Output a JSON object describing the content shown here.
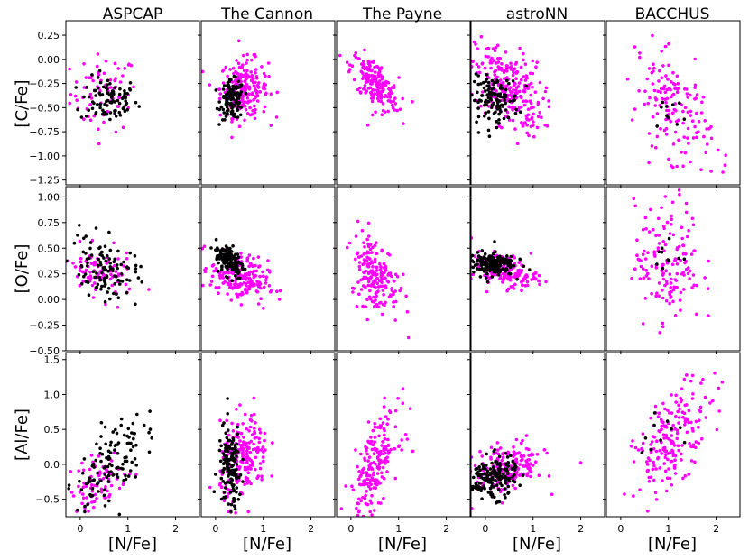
{
  "figure": {
    "columns": [
      "ASPCAP",
      "The Cannon",
      "The Payne",
      "astroNN",
      "BACCHUS"
    ],
    "xlabel": "[N/Fe]",
    "rows": [
      "[C/Fe]",
      "[O/Fe]",
      "[Al/Fe]"
    ]
  },
  "colors": {
    "magenta_series": "#ff00ff",
    "black_series": "#000000"
  },
  "chart_data": {
    "type": "scatter",
    "grid": false,
    "xlim": [
      -0.3,
      2.5
    ],
    "xticks": [
      0,
      1,
      2
    ],
    "xtick_labels": [
      "0",
      "1",
      "2"
    ],
    "rows": [
      {
        "ylabel": "[C/Fe]",
        "ylim": [
          -1.3,
          0.4
        ],
        "yticks": [
          -1.25,
          -1.0,
          -0.75,
          -0.5,
          -0.25,
          0.0,
          0.25
        ],
        "ytick_labels": [
          "−1.25",
          "−1.00",
          "−0.75",
          "−0.50",
          "−0.25",
          "0.00",
          "0.25"
        ]
      },
      {
        "ylabel": "[O/Fe]",
        "ylim": [
          -0.5,
          1.1
        ],
        "yticks": [
          -0.5,
          -0.25,
          0.0,
          0.25,
          0.5,
          0.75,
          1.0
        ],
        "ytick_labels": [
          "−0.50",
          "−0.25",
          "0.00",
          "0.25",
          "0.50",
          "0.75",
          "1.00"
        ]
      },
      {
        "ylabel": "[Al/Fe]",
        "ylim": [
          -0.75,
          1.6
        ],
        "yticks": [
          -0.5,
          0.0,
          0.5,
          1.0,
          1.5
        ],
        "ytick_labels": [
          "−0.5",
          "0.0",
          "0.5",
          "1.0",
          "1.5"
        ]
      }
    ],
    "panels": [
      {
        "row": 0,
        "col": 0,
        "magenta": {
          "n": 70,
          "x": [
            0.5,
            0.35
          ],
          "y": [
            -0.35,
            0.2
          ],
          "corr": 0
        },
        "black": {
          "n": 90,
          "x": [
            0.6,
            0.3
          ],
          "y": [
            -0.42,
            0.12
          ],
          "corr": 0
        }
      },
      {
        "row": 0,
        "col": 1,
        "magenta": {
          "n": 220,
          "x": [
            0.6,
            0.25
          ],
          "y": [
            -0.3,
            0.15
          ],
          "corr": 0
        },
        "black": {
          "n": 130,
          "x": [
            0.35,
            0.12
          ],
          "y": [
            -0.42,
            0.1
          ],
          "corr": 0
        }
      },
      {
        "row": 0,
        "col": 2,
        "magenta": {
          "n": 190,
          "x": [
            0.5,
            0.25
          ],
          "y": [
            -0.25,
            0.15
          ],
          "corr": -0.6
        },
        "black": {
          "n": 0,
          "x": [
            0,
            0
          ],
          "y": [
            0,
            0
          ],
          "corr": 0
        }
      },
      {
        "row": 0,
        "col": 3,
        "magenta": {
          "n": 250,
          "x": [
            0.5,
            0.35
          ],
          "y": [
            -0.3,
            0.22
          ],
          "corr": -0.4
        },
        "black": {
          "n": 130,
          "x": [
            0.2,
            0.25
          ],
          "y": [
            -0.42,
            0.12
          ],
          "corr": 0
        }
      },
      {
        "row": 0,
        "col": 4,
        "magenta": {
          "n": 150,
          "x": [
            1.1,
            0.4
          ],
          "y": [
            -0.5,
            0.3
          ],
          "corr": -0.5
        },
        "black": {
          "n": 10,
          "x": [
            1.0,
            0.2
          ],
          "y": [
            -0.55,
            0.1
          ],
          "corr": 0
        }
      },
      {
        "row": 1,
        "col": 0,
        "magenta": {
          "n": 90,
          "x": [
            0.4,
            0.35
          ],
          "y": [
            0.25,
            0.12
          ],
          "corr": -0.3
        },
        "black": {
          "n": 110,
          "x": [
            0.5,
            0.35
          ],
          "y": [
            0.3,
            0.15
          ],
          "corr": -0.3
        }
      },
      {
        "row": 1,
        "col": 1,
        "magenta": {
          "n": 200,
          "x": [
            0.5,
            0.3
          ],
          "y": [
            0.22,
            0.12
          ],
          "corr": -0.3
        },
        "black": {
          "n": 140,
          "x": [
            0.3,
            0.15
          ],
          "y": [
            0.38,
            0.08
          ],
          "corr": -0.4
        }
      },
      {
        "row": 1,
        "col": 2,
        "magenta": {
          "n": 190,
          "x": [
            0.5,
            0.25
          ],
          "y": [
            0.25,
            0.2
          ],
          "corr": -0.4
        },
        "black": {
          "n": 0,
          "x": [
            0,
            0
          ],
          "y": [
            0,
            0
          ],
          "corr": 0
        }
      },
      {
        "row": 1,
        "col": 3,
        "magenta": {
          "n": 160,
          "x": [
            0.4,
            0.35
          ],
          "y": [
            0.28,
            0.08
          ],
          "corr": -0.3
        },
        "black": {
          "n": 170,
          "x": [
            0.1,
            0.25
          ],
          "y": [
            0.35,
            0.06
          ],
          "corr": 0
        }
      },
      {
        "row": 1,
        "col": 4,
        "magenta": {
          "n": 150,
          "x": [
            1.0,
            0.35
          ],
          "y": [
            0.35,
            0.3
          ],
          "corr": 0
        },
        "black": {
          "n": 10,
          "x": [
            1.0,
            0.2
          ],
          "y": [
            0.45,
            0.1
          ],
          "corr": 0
        }
      },
      {
        "row": 2,
        "col": 0,
        "magenta": {
          "n": 80,
          "x": [
            0.4,
            0.3
          ],
          "y": [
            -0.25,
            0.2
          ],
          "corr": 0.3
        },
        "black": {
          "n": 120,
          "x": [
            0.6,
            0.35
          ],
          "y": [
            0.0,
            0.35
          ],
          "corr": 0.6
        }
      },
      {
        "row": 2,
        "col": 1,
        "magenta": {
          "n": 200,
          "x": [
            0.6,
            0.25
          ],
          "y": [
            0.1,
            0.3
          ],
          "corr": 0.2
        },
        "black": {
          "n": 140,
          "x": [
            0.3,
            0.12
          ],
          "y": [
            -0.05,
            0.3
          ],
          "corr": 0
        }
      },
      {
        "row": 2,
        "col": 2,
        "magenta": {
          "n": 200,
          "x": [
            0.5,
            0.25
          ],
          "y": [
            0.0,
            0.35
          ],
          "corr": 0.6
        },
        "black": {
          "n": 0,
          "x": [
            0,
            0
          ],
          "y": [
            0,
            0
          ],
          "corr": 0
        }
      },
      {
        "row": 2,
        "col": 3,
        "magenta": {
          "n": 180,
          "x": [
            0.5,
            0.35
          ],
          "y": [
            -0.05,
            0.18
          ],
          "corr": 0.3
        },
        "black": {
          "n": 170,
          "x": [
            0.15,
            0.25
          ],
          "y": [
            -0.2,
            0.15
          ],
          "corr": 0.2
        }
      },
      {
        "row": 2,
        "col": 4,
        "magenta": {
          "n": 190,
          "x": [
            1.1,
            0.4
          ],
          "y": [
            0.4,
            0.4
          ],
          "corr": 0.6
        },
        "black": {
          "n": 10,
          "x": [
            0.9,
            0.3
          ],
          "y": [
            0.5,
            0.2
          ],
          "corr": 0
        }
      }
    ]
  }
}
